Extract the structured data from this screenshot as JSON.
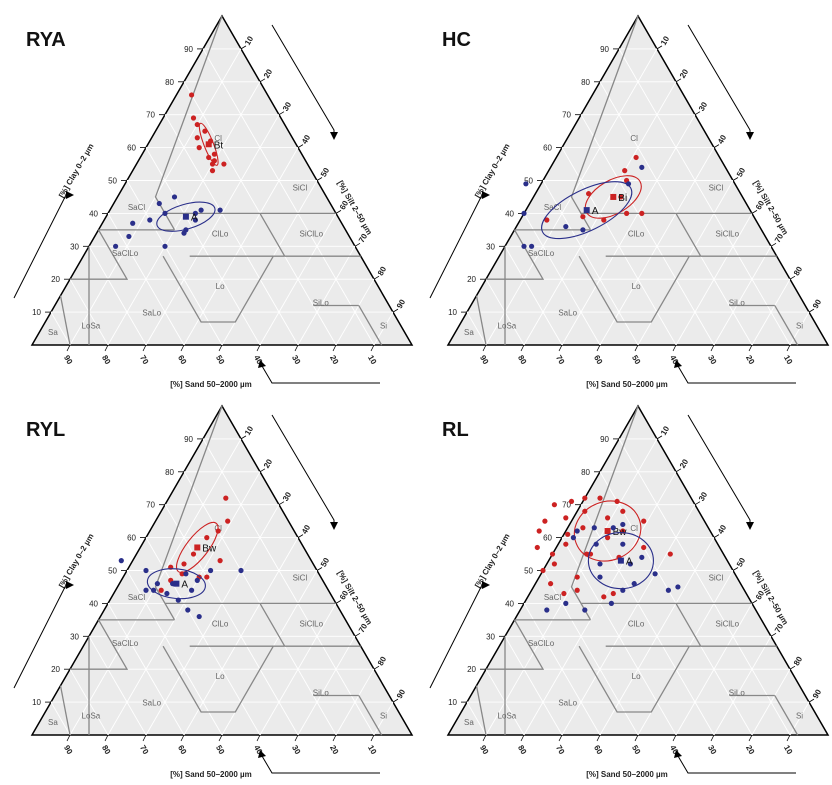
{
  "axis_titles": {
    "clay": "[%] Clay 0–2 µm",
    "silt": "[%] Silt 2–50 µm",
    "sand": "[%] Sand 50–2000 µm"
  },
  "tick_labels": [
    "10",
    "20",
    "30",
    "40",
    "50",
    "60",
    "70",
    "80",
    "90"
  ],
  "texture_classes": [
    "Cl",
    "SiCl",
    "SaCl",
    "SiClLo",
    "SaClLo",
    "ClLo",
    "Lo",
    "SiLo",
    "SaLo",
    "LoSa",
    "Sa",
    "Si"
  ],
  "colors": {
    "red": "#cc2222",
    "blue": "#2a2f8a",
    "background": "#ebebeb",
    "grid": "#ffffff",
    "boundary": "#888888"
  },
  "chart_data": [
    {
      "type": "scatter",
      "subtype": "ternary",
      "title": "RYA",
      "series": [
        {
          "name": "Bt",
          "color": "red",
          "centroid": {
            "sand": 23,
            "clay": 61
          },
          "points": [
            [
              20,
              76
            ],
            [
              23,
              69
            ],
            [
              23,
              67
            ],
            [
              22,
              65
            ],
            [
              25,
              63
            ],
            [
              22,
              62
            ],
            [
              26,
              60
            ],
            [
              23,
              58
            ],
            [
              25,
              57
            ],
            [
              24,
              56
            ],
            [
              22,
              55
            ],
            [
              25,
              55
            ],
            [
              26,
              53
            ]
          ]
        },
        {
          "name": "A",
          "color": "blue",
          "centroid": {
            "sand": 40,
            "clay": 39
          },
          "points": [
            [
              40,
              45
            ],
            [
              35,
              41
            ],
            [
              37,
              40
            ],
            [
              50,
              38
            ],
            [
              45,
              40
            ],
            [
              58,
              33
            ],
            [
              38,
              38
            ],
            [
              30,
              41
            ],
            [
              42,
              35
            ],
            [
              43,
              34
            ],
            [
              50,
              30
            ],
            [
              63,
              30
            ],
            [
              55,
              37
            ],
            [
              45,
              43
            ]
          ]
        }
      ]
    },
    {
      "type": "scatter",
      "subtype": "ternary",
      "title": "HC",
      "series": [
        {
          "name": "Bi",
          "color": "red",
          "centroid": {
            "sand": 34,
            "clay": 45
          },
          "points": [
            [
              22,
              57
            ],
            [
              27,
              53
            ],
            [
              28,
              50
            ],
            [
              32,
              45
            ],
            [
              40,
              46
            ],
            [
              33,
              40
            ],
            [
              40,
              38
            ],
            [
              29,
              40
            ],
            [
              55,
              38
            ],
            [
              45,
              39
            ]
          ]
        },
        {
          "name": "A",
          "color": "blue",
          "centroid": {
            "sand": 43,
            "clay": 41
          },
          "points": [
            [
              22,
              54
            ],
            [
              28,
              49
            ],
            [
              55,
              49
            ],
            [
              60,
              40
            ],
            [
              51,
              36
            ],
            [
              47,
              35
            ],
            [
              63,
              30
            ],
            [
              65,
              30
            ]
          ]
        }
      ]
    },
    {
      "type": "scatter",
      "subtype": "ternary",
      "title": "RYL",
      "series": [
        {
          "name": "Bw",
          "color": "red",
          "centroid": {
            "sand": 28,
            "clay": 57
          },
          "points": [
            [
              13,
              72
            ],
            [
              16,
              65
            ],
            [
              20,
              62
            ],
            [
              24,
              60
            ],
            [
              28,
              57
            ],
            [
              30,
              55
            ],
            [
              24,
              53
            ],
            [
              34,
              52
            ],
            [
              38,
              51
            ],
            [
              36,
              49
            ],
            [
              30,
              48
            ],
            [
              40,
              47
            ],
            [
              44,
              44
            ],
            [
              32,
              48
            ]
          ]
        },
        {
          "name": "A",
          "color": "blue",
          "centroid": {
            "sand": 39,
            "clay": 46
          },
          "points": [
            [
              50,
              53
            ],
            [
              45,
              50
            ],
            [
              33,
              47
            ],
            [
              35,
              49
            ],
            [
              40,
              46
            ],
            [
              44,
              46
            ],
            [
              46,
              44
            ],
            [
              43,
              43
            ],
            [
              41,
              41
            ],
            [
              28,
              50
            ],
            [
              36,
              44
            ],
            [
              40,
              38
            ],
            [
              38,
              36
            ],
            [
              20,
              50
            ],
            [
              48,
              44
            ]
          ]
        }
      ]
    },
    {
      "type": "scatter",
      "subtype": "ternary",
      "title": "RL",
      "series": [
        {
          "name": "Bw",
          "color": "red",
          "centroid": {
            "sand": 27,
            "clay": 62
          },
          "points": [
            [
              28,
              72
            ],
            [
              24,
              72
            ],
            [
              20,
              71
            ],
            [
              32,
              71
            ],
            [
              37,
              70
            ],
            [
              30,
              68
            ],
            [
              20,
              68
            ],
            [
              25,
              66
            ],
            [
              16,
              65
            ],
            [
              36,
              66
            ],
            [
              42,
              65
            ],
            [
              33,
              63
            ],
            [
              45,
              62
            ],
            [
              23,
              62
            ],
            [
              38,
              61
            ],
            [
              28,
              60
            ],
            [
              40,
              58
            ],
            [
              45,
              55
            ],
            [
              46,
              52
            ],
            [
              50,
              50
            ],
            [
              36,
              55
            ],
            [
              42,
              48
            ],
            [
              50,
              46
            ],
            [
              44,
              44
            ],
            [
              48,
              43
            ],
            [
              35,
              43
            ],
            [
              38,
              42
            ],
            [
              20,
              57
            ],
            [
              28,
              54
            ],
            [
              35,
              55
            ],
            [
              48,
              57
            ],
            [
              14,
              55
            ]
          ]
        },
        {
          "name": "A",
          "color": "blue",
          "centroid": {
            "sand": 28,
            "clay": 53
          },
          "points": [
            [
              30,
              63
            ],
            [
              25,
              63
            ],
            [
              22,
              64
            ],
            [
              35,
              62
            ],
            [
              37,
              60
            ],
            [
              32,
              58
            ],
            [
              25,
              58
            ],
            [
              28,
              53
            ],
            [
              22,
              54
            ],
            [
              26,
              52
            ],
            [
              34,
              52
            ],
            [
              21,
              49
            ],
            [
              28,
              46
            ],
            [
              36,
              48
            ],
            [
              32,
              44
            ],
            [
              20,
              44
            ],
            [
              37,
              40
            ],
            [
              45,
              38
            ],
            [
              49,
              40
            ],
            [
              17,
              45
            ],
            [
              55,
              38
            ]
          ]
        }
      ]
    }
  ]
}
